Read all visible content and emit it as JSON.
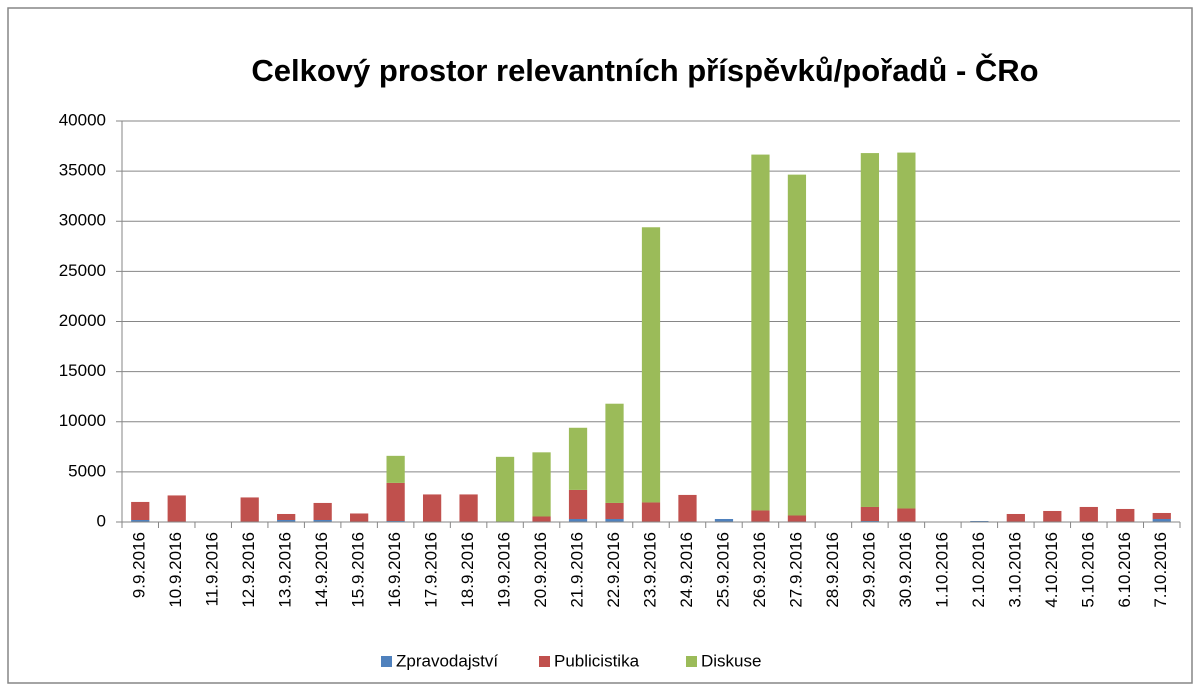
{
  "chart_data": {
    "type": "stacked_bar",
    "title": "Celkový prostor relevantních příspěvků/pořadů - ČRo",
    "categories": [
      "9.9.2016",
      "10.9.2016",
      "11.9.2016",
      "12.9.2016",
      "13.9.2016",
      "14.9.2016",
      "15.9.2016",
      "16.9.2016",
      "17.9.2016",
      "18.9.2016",
      "19.9.2016",
      "20.9.2016",
      "21.9.2016",
      "22.9.2016",
      "23.9.2016",
      "24.9.2016",
      "25.9.2016",
      "26.9.2016",
      "27.9.2016",
      "28.9.2016",
      "29.9.2016",
      "30.9.2016",
      "1.10.2016",
      "2.10.2016",
      "3.10.2016",
      "4.10.2016",
      "5.10.2016",
      "6.10.2016",
      "7.10.2016"
    ],
    "series": [
      {
        "name": "Zpravodajství",
        "color": "#4f81bd",
        "values": [
          200,
          50,
          0,
          50,
          200,
          200,
          50,
          100,
          50,
          50,
          0,
          50,
          300,
          300,
          50,
          50,
          300,
          50,
          50,
          0,
          100,
          50,
          0,
          100,
          50,
          50,
          50,
          50,
          300
        ]
      },
      {
        "name": "Publicistika",
        "color": "#c0504d",
        "values": [
          1800,
          2600,
          0,
          2400,
          600,
          1700,
          800,
          3800,
          2700,
          2700,
          0,
          500,
          2900,
          1600,
          1900,
          2650,
          0,
          1100,
          600,
          0,
          1400,
          1300,
          0,
          0,
          750,
          1050,
          1450,
          1250,
          600
        ]
      },
      {
        "name": "Diskuse",
        "color": "#9bbb59",
        "values": [
          0,
          0,
          0,
          0,
          0,
          0,
          0,
          2700,
          0,
          0,
          6500,
          6400,
          6200,
          9900,
          27450,
          0,
          0,
          35500,
          34000,
          0,
          35300,
          35500,
          0,
          0,
          0,
          0,
          0,
          0,
          0
        ]
      }
    ],
    "ylim": [
      0,
      40000
    ],
    "yticks": [
      0,
      5000,
      10000,
      15000,
      20000,
      25000,
      30000,
      35000,
      40000
    ],
    "grid": true,
    "legend": "bottom"
  }
}
